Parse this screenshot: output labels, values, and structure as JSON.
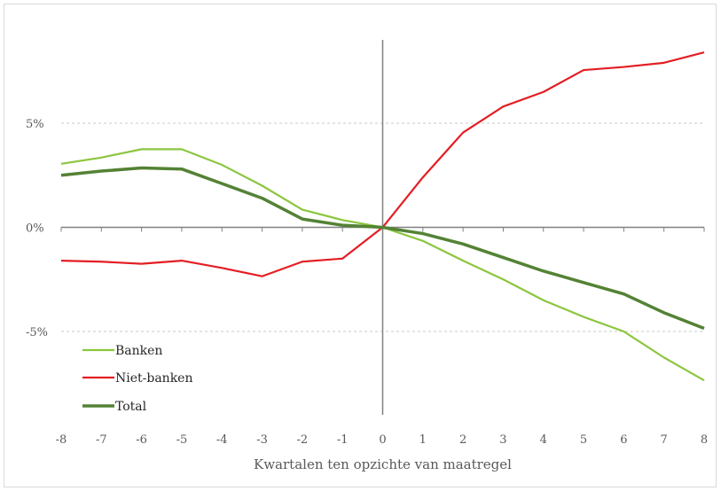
{
  "chart_data": {
    "type": "line",
    "title": "",
    "xlabel": "Kwartalen ten opzichte van maatregel",
    "ylabel": "",
    "x": [
      -8,
      -7,
      -6,
      -5,
      -4,
      -3,
      -2,
      -1,
      0,
      1,
      2,
      3,
      4,
      5,
      6,
      7,
      8
    ],
    "xlim": [
      -8,
      8
    ],
    "ylim": [
      -9,
      9
    ],
    "y_ticks": [
      -5,
      0,
      5
    ],
    "y_tick_labels": [
      "-5%",
      "0%",
      "5%"
    ],
    "x_tick_labels": [
      "-8",
      "-7",
      "-6",
      "-5",
      "-4",
      "-3",
      "-2",
      "-1",
      "0",
      "1",
      "2",
      "3",
      "4",
      "5",
      "6",
      "7",
      "8"
    ],
    "grid": "horizontal dashed at tick values",
    "legend_position": "bottom-left",
    "series": [
      {
        "name": "Banken",
        "color": "#8cc63f",
        "values": [
          3.05,
          3.35,
          3.75,
          3.75,
          3.0,
          2.0,
          0.85,
          0.35,
          0.0,
          -0.65,
          -1.6,
          -2.5,
          -3.5,
          -4.3,
          -5.0,
          -6.25,
          -7.35
        ]
      },
      {
        "name": "Niet-banken",
        "color": "#e31e24",
        "values": [
          -1.6,
          -1.65,
          -1.75,
          -1.6,
          -1.95,
          -2.35,
          -1.65,
          -1.5,
          0.0,
          2.4,
          4.55,
          5.8,
          6.5,
          7.55,
          7.7,
          7.9,
          8.4
        ]
      },
      {
        "name": "Total",
        "color": "#548235",
        "values": [
          2.5,
          2.7,
          2.85,
          2.8,
          2.1,
          1.4,
          0.4,
          0.1,
          0.0,
          -0.3,
          -0.8,
          -1.45,
          -2.1,
          -2.65,
          -3.2,
          -4.1,
          -4.85
        ]
      }
    ]
  }
}
